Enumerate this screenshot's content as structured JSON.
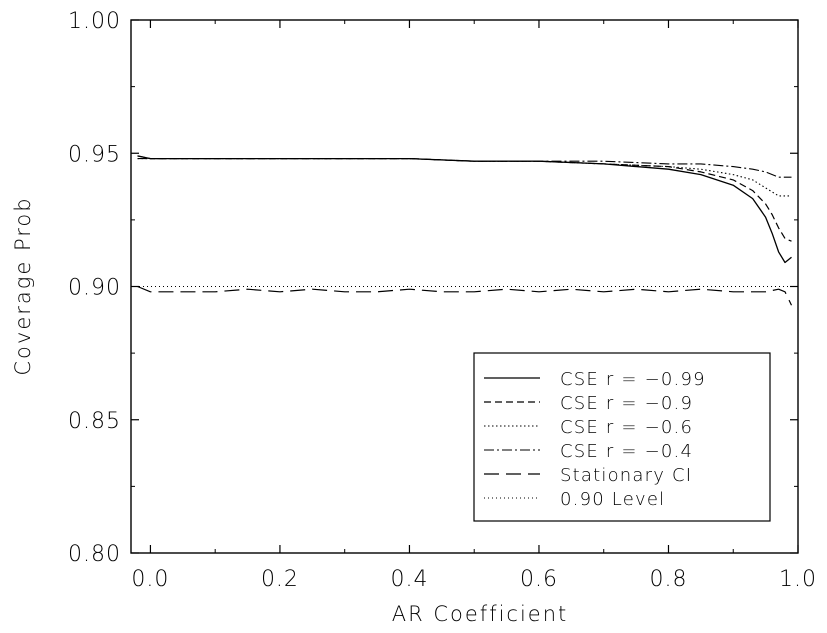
{
  "chart_data": {
    "type": "line",
    "title": "",
    "xlabel": "AR Coefficient",
    "ylabel": "Coverage Prob",
    "xlim": [
      -0.03,
      1.0
    ],
    "ylim": [
      0.8,
      1.0
    ],
    "x_ticks": [
      "0.0",
      "0.2",
      "0.4",
      "0.6",
      "0.8",
      "1.0"
    ],
    "y_ticks": [
      "0.80",
      "0.85",
      "0.90",
      "0.95",
      "1.00"
    ],
    "grid": false,
    "legend_position": "bottom-right",
    "series": [
      {
        "name": "CSE r = −0.99",
        "dash": "solid",
        "x": [
          -0.02,
          0.0,
          0.1,
          0.2,
          0.3,
          0.4,
          0.5,
          0.6,
          0.7,
          0.8,
          0.85,
          0.9,
          0.93,
          0.95,
          0.96,
          0.97,
          0.98,
          0.99
        ],
        "y": [
          0.949,
          0.948,
          0.948,
          0.948,
          0.948,
          0.948,
          0.947,
          0.947,
          0.946,
          0.944,
          0.942,
          0.938,
          0.933,
          0.926,
          0.92,
          0.913,
          0.909,
          0.911
        ]
      },
      {
        "name": "CSE r = −0.9",
        "dash": "dashed",
        "x": [
          -0.02,
          0.0,
          0.1,
          0.2,
          0.3,
          0.4,
          0.5,
          0.6,
          0.7,
          0.8,
          0.85,
          0.9,
          0.93,
          0.95,
          0.96,
          0.97,
          0.98,
          0.99
        ],
        "y": [
          0.949,
          0.948,
          0.948,
          0.948,
          0.948,
          0.948,
          0.947,
          0.947,
          0.946,
          0.945,
          0.943,
          0.94,
          0.936,
          0.931,
          0.927,
          0.922,
          0.918,
          0.917
        ]
      },
      {
        "name": "CSE r = −0.6",
        "dash": "dotted",
        "x": [
          -0.02,
          0.0,
          0.1,
          0.2,
          0.3,
          0.4,
          0.5,
          0.6,
          0.7,
          0.8,
          0.85,
          0.9,
          0.93,
          0.95,
          0.97,
          0.99
        ],
        "y": [
          0.948,
          0.948,
          0.948,
          0.948,
          0.948,
          0.948,
          0.947,
          0.947,
          0.946,
          0.945,
          0.944,
          0.942,
          0.94,
          0.937,
          0.934,
          0.934
        ]
      },
      {
        "name": "CSE r = −0.4",
        "dash": "dashdot",
        "x": [
          -0.02,
          0.0,
          0.1,
          0.2,
          0.3,
          0.4,
          0.5,
          0.6,
          0.7,
          0.8,
          0.85,
          0.9,
          0.93,
          0.95,
          0.97,
          0.99
        ],
        "y": [
          0.948,
          0.948,
          0.948,
          0.948,
          0.948,
          0.948,
          0.947,
          0.947,
          0.947,
          0.946,
          0.946,
          0.945,
          0.944,
          0.943,
          0.941,
          0.941
        ]
      },
      {
        "name": "Stationary CI",
        "dash": "longdash",
        "x": [
          -0.02,
          0.0,
          0.05,
          0.1,
          0.15,
          0.2,
          0.25,
          0.3,
          0.35,
          0.4,
          0.45,
          0.5,
          0.55,
          0.6,
          0.65,
          0.7,
          0.75,
          0.8,
          0.85,
          0.9,
          0.95,
          0.97,
          0.98,
          0.99
        ],
        "y": [
          0.9,
          0.898,
          0.898,
          0.898,
          0.899,
          0.898,
          0.899,
          0.898,
          0.898,
          0.899,
          0.898,
          0.898,
          0.899,
          0.898,
          0.899,
          0.898,
          0.899,
          0.898,
          0.899,
          0.898,
          0.898,
          0.899,
          0.898,
          0.893
        ]
      },
      {
        "name": "0.90 Level",
        "dash": "finedot",
        "x": [
          -0.03,
          1.0
        ],
        "y": [
          0.9,
          0.9
        ]
      }
    ]
  }
}
